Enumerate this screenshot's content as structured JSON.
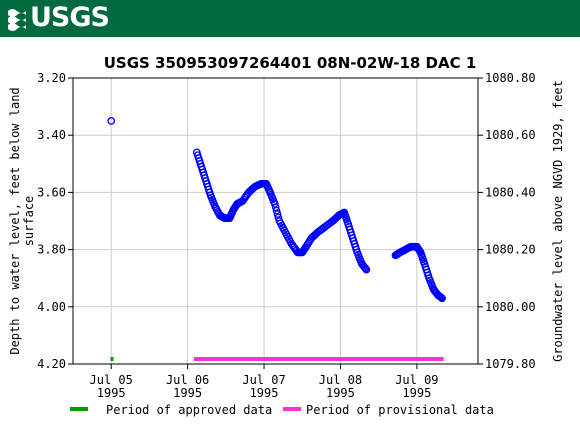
{
  "header": {
    "logo_text": "USGS",
    "logo_icon": "usgs-wave-icon",
    "background_color": "#00693e"
  },
  "chart_data": {
    "type": "scatter",
    "title": "USGS 350953097264401 08N-02W-18 DAC 1",
    "ylabel_left": "Depth to water level, feet below land surface",
    "ylabel_left_lines": [
      "Depth to water level, feet below land",
      "surface"
    ],
    "ylabel_right": "Groundwater level above NGVD 1929, feet",
    "y_left_range": [
      3.2,
      4.2
    ],
    "y_left_inverted": true,
    "y_left_ticks": [
      "3.20",
      "3.40",
      "3.60",
      "3.80",
      "4.00",
      "4.20"
    ],
    "y_right_range": [
      1079.8,
      1080.8
    ],
    "y_right_ticks": [
      "1080.80",
      "1080.60",
      "1080.40",
      "1080.20",
      "1080.00",
      "1079.80"
    ],
    "x_range": [
      4.5,
      9.8
    ],
    "x_ticks": [
      {
        "x": 5,
        "label": [
          "Jul 05",
          "1995"
        ]
      },
      {
        "x": 6,
        "label": [
          "Jul 06",
          "1995"
        ]
      },
      {
        "x": 7,
        "label": [
          "Jul 07",
          "1995"
        ]
      },
      {
        "x": 8,
        "label": [
          "Jul 08",
          "1995"
        ]
      },
      {
        "x": 9,
        "label": [
          "Jul 09",
          "1995"
        ]
      }
    ],
    "grid": true,
    "marker_color": "#0000ff",
    "series": [
      {
        "name": "",
        "points": [
          [
            5.0,
            3.35
          ],
          [
            6.12,
            3.46
          ],
          [
            6.18,
            3.51
          ],
          [
            6.24,
            3.56
          ],
          [
            6.3,
            3.61
          ],
          [
            6.36,
            3.65
          ],
          [
            6.42,
            3.68
          ],
          [
            6.48,
            3.69
          ],
          [
            6.55,
            3.69
          ],
          [
            6.6,
            3.66
          ],
          [
            6.65,
            3.64
          ],
          [
            6.72,
            3.63
          ],
          [
            6.8,
            3.6
          ],
          [
            6.88,
            3.58
          ],
          [
            6.96,
            3.57
          ],
          [
            7.03,
            3.57
          ],
          [
            7.08,
            3.6
          ],
          [
            7.14,
            3.64
          ],
          [
            7.2,
            3.7
          ],
          [
            7.28,
            3.74
          ],
          [
            7.36,
            3.78
          ],
          [
            7.44,
            3.81
          ],
          [
            7.5,
            3.81
          ],
          [
            7.55,
            3.79
          ],
          [
            7.62,
            3.76
          ],
          [
            7.7,
            3.74
          ],
          [
            7.8,
            3.72
          ],
          [
            7.9,
            3.7
          ],
          [
            7.98,
            3.68
          ],
          [
            8.05,
            3.67
          ],
          [
            8.1,
            3.71
          ],
          [
            8.16,
            3.76
          ],
          [
            8.22,
            3.81
          ],
          [
            8.28,
            3.85
          ],
          [
            8.34,
            3.87
          ],
          [
            8.72,
            3.82
          ],
          [
            8.78,
            3.81
          ],
          [
            8.85,
            3.8
          ],
          [
            8.92,
            3.79
          ],
          [
            9.0,
            3.79
          ],
          [
            9.05,
            3.81
          ],
          [
            9.1,
            3.85
          ],
          [
            9.16,
            3.9
          ],
          [
            9.22,
            3.94
          ],
          [
            9.28,
            3.96
          ],
          [
            9.33,
            3.97
          ]
        ]
      }
    ],
    "legend": [
      {
        "name": "Period of approved data",
        "color": "#009900"
      },
      {
        "name": "Period of provisional data",
        "color": "#ff33cc"
      }
    ],
    "legend_placement": "bottom",
    "period_bars": [
      {
        "legend_index": 0,
        "x_start": 4.99,
        "x_end": 5.03
      },
      {
        "legend_index": 1,
        "x_start": 6.08,
        "x_end": 9.35
      }
    ]
  }
}
